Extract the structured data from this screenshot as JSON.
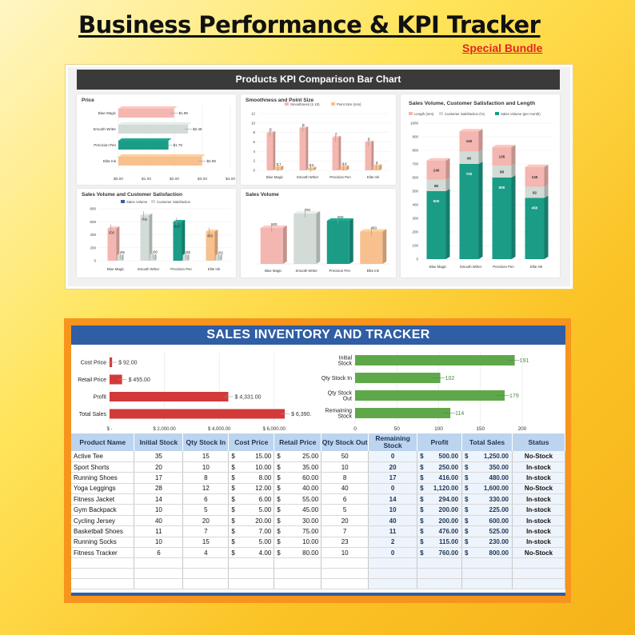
{
  "header": {
    "title": "Business Performance & KPI Tracker",
    "subtitle": "Special Bundle"
  },
  "kpi_panel": {
    "banner": "Products KPI Comparison Bar Chart"
  },
  "colors": {
    "pink": "#f4b6b0",
    "grey": "#d3dbd6",
    "teal": "#1a9c86",
    "orange": "#f8c08e",
    "red_bar": "#d23a3a",
    "green_bar": "#5fa84a",
    "banner_blue": "#2f5ea4",
    "frame_orange": "#f7941d"
  },
  "chart_data": [
    {
      "id": "price",
      "type": "bar",
      "orientation": "horizontal",
      "title": "Price",
      "categories": [
        "Blue Magic",
        "Smooth Writer",
        "Precision Pen",
        "Elite Ink"
      ],
      "values": [
        1.99,
        2.49,
        1.79,
        2.99
      ],
      "value_labels": [
        "$1.99",
        "$2.49",
        "$1.79",
        "$2.99"
      ],
      "bar_colors": [
        "#f4b6b0",
        "#d3dbd6",
        "#1a9c86",
        "#f8c08e"
      ],
      "xlim": [
        0,
        4
      ],
      "xticks": [
        "$0.00",
        "$1.00",
        "$2.00",
        "$3.00",
        "$4.00"
      ]
    },
    {
      "id": "smoothness",
      "type": "bar",
      "title": "Smoothness and Point Size",
      "categories": [
        "Blue Magic",
        "Smooth Writer",
        "Precision Pen",
        "Elite Ink"
      ],
      "series": [
        {
          "name": "Smoothness (1-10)",
          "values": [
            8,
            9,
            7,
            6
          ],
          "color": "#f4b6b0"
        },
        {
          "name": "Point Size (mm)",
          "values": [
            0.7,
            0.5,
            0.8,
            1
          ],
          "color": "#f8c08e"
        }
      ],
      "value_labels": [
        [
          "8",
          "9",
          "7",
          "6"
        ],
        [
          "0.7",
          "0.5",
          "0.8",
          "1"
        ]
      ],
      "ylim": [
        0,
        12
      ],
      "yticks": [
        "0",
        "2",
        "4",
        "6",
        "8",
        "10",
        "12"
      ]
    },
    {
      "id": "stacked",
      "type": "bar",
      "stacked": true,
      "title": "Sales Volume, Customer Satisfaction and Length",
      "categories": [
        "Blue Magic",
        "Smooth Writer",
        "Precision Pen",
        "Elite Ink"
      ],
      "series": [
        {
          "name": "Sales Volume (per month)",
          "values": [
            500,
            700,
            600,
            450
          ],
          "color": "#1a9c86"
        },
        {
          "name": "Customer Satisfaction (%)",
          "values": [
            85,
            90,
            88,
            82
          ],
          "color": "#d3dbd6"
        },
        {
          "name": "Length (mm)",
          "values": [
            140,
            150,
            135,
            145
          ],
          "color": "#f4b6b0"
        }
      ],
      "legend_order": [
        "Length (mm)",
        "Customer Satisfaction (%)",
        "Sales Volume (per month)"
      ],
      "value_labels": [
        [
          "500",
          "700",
          "600",
          "450"
        ],
        [
          "85",
          "90",
          "88",
          "82"
        ],
        [
          "140",
          "150",
          "135",
          "145"
        ]
      ],
      "ylim": [
        0,
        1000
      ],
      "yticks": [
        "0",
        "100",
        "200",
        "300",
        "400",
        "500",
        "600",
        "700",
        "800",
        "900",
        "1000"
      ]
    },
    {
      "id": "sales-satisfaction",
      "type": "bar",
      "title": "Sales Volume and Customer Satisfaction",
      "categories": [
        "Blue Magic",
        "Smooth Writer",
        "Precision Pen",
        "Elite Ink"
      ],
      "series": [
        {
          "name": "Sales Volume",
          "values": [
            500,
            700,
            600,
            450
          ],
          "color": "#3c5ba8"
        },
        {
          "name": "Customer Satisfaction",
          "values": [
            85,
            90,
            88,
            82
          ],
          "color": "#d3dbd6"
        }
      ],
      "bar_colors": [
        "#f4b6b0",
        "#d3dbd6",
        "#1a9c86",
        "#f8c08e"
      ],
      "value_labels": [
        [
          "500",
          "700",
          "600",
          "450"
        ],
        [
          "85",
          "90",
          "88",
          "82"
        ]
      ],
      "ylim": [
        0,
        800
      ],
      "yticks": [
        "0",
        "200",
        "400",
        "600",
        "800"
      ]
    },
    {
      "id": "sales-volume",
      "type": "bar",
      "title": "Sales Volume",
      "categories": [
        "Blue Magic",
        "Smooth Writer",
        "Precision Pen",
        "Elite Ink"
      ],
      "values": [
        500,
        700,
        600,
        450
      ],
      "value_labels": [
        "500",
        "700",
        "600",
        "450"
      ],
      "bar_colors": [
        "#f4b6b0",
        "#d3dbd6",
        "#1a9c86",
        "#f8c08e"
      ],
      "ylim": [
        0,
        800
      ]
    },
    {
      "id": "sales-summary",
      "type": "bar",
      "orientation": "horizontal",
      "categories": [
        "Cost Price",
        "Retail Price",
        "Profit",
        "Total Sales"
      ],
      "values": [
        92,
        455,
        4331,
        6390
      ],
      "value_labels": [
        "$ 92.00",
        "$ 455.00",
        "$ 4,331.00",
        "$ 6,390.00"
      ],
      "xlim": [
        0,
        7000
      ],
      "xticks": [
        "$ -",
        "$ 2,000.00",
        "$ 4,000.00",
        "$ 6,000.00"
      ],
      "color": "#d23a3a"
    },
    {
      "id": "stock-summary",
      "type": "bar",
      "orientation": "horizontal",
      "categories": [
        "Initial Stock",
        "Qty Stock In",
        "Qty Stock Out",
        "Remaining Stock"
      ],
      "values": [
        191,
        102,
        179,
        114
      ],
      "value_labels": [
        "191",
        "102",
        "179",
        "114"
      ],
      "xlim": [
        0,
        200
      ],
      "xticks": [
        "0",
        "50",
        "100",
        "150",
        "200"
      ],
      "color": "#5fa84a"
    }
  ],
  "sales": {
    "banner": "SALES INVENTORY AND TRACKER",
    "columns": [
      "Product Name",
      "Initial Stock",
      "Qty Stock In",
      "Cost Price",
      "Retail Price",
      "Qty Stock Out",
      "Remaining Stock",
      "Profit",
      "Total Sales",
      "Status"
    ],
    "rows": [
      {
        "name": "Active Tee",
        "initial": "35",
        "in": "15",
        "cost": "15.00",
        "retail": "25.00",
        "out": "50",
        "remaining": "0",
        "profit": "500.00",
        "total": "1,250.00",
        "status": "No-Stock"
      },
      {
        "name": "Sport Shorts",
        "initial": "20",
        "in": "10",
        "cost": "10.00",
        "retail": "35.00",
        "out": "10",
        "remaining": "20",
        "profit": "250.00",
        "total": "350.00",
        "status": "In-stock"
      },
      {
        "name": "Running Shoes",
        "initial": "17",
        "in": "8",
        "cost": "8.00",
        "retail": "60.00",
        "out": "8",
        "remaining": "17",
        "profit": "416.00",
        "total": "480.00",
        "status": "In-stock"
      },
      {
        "name": "Yoga Leggings",
        "initial": "28",
        "in": "12",
        "cost": "12.00",
        "retail": "40.00",
        "out": "40",
        "remaining": "0",
        "profit": "1,120.00",
        "total": "1,600.00",
        "status": "No-Stock"
      },
      {
        "name": "Fitness Jacket",
        "initial": "14",
        "in": "6",
        "cost": "6.00",
        "retail": "55.00",
        "out": "6",
        "remaining": "14",
        "profit": "294.00",
        "total": "330.00",
        "status": "In-stock"
      },
      {
        "name": "Gym Backpack",
        "initial": "10",
        "in": "5",
        "cost": "5.00",
        "retail": "45.00",
        "out": "5",
        "remaining": "10",
        "profit": "200.00",
        "total": "225.00",
        "status": "In-stock"
      },
      {
        "name": "Cycling Jersey",
        "initial": "40",
        "in": "20",
        "cost": "20.00",
        "retail": "30.00",
        "out": "20",
        "remaining": "40",
        "profit": "200.00",
        "total": "600.00",
        "status": "In-stock"
      },
      {
        "name": "Basketball Shoes",
        "initial": "11",
        "in": "7",
        "cost": "7.00",
        "retail": "75.00",
        "out": "7",
        "remaining": "11",
        "profit": "476.00",
        "total": "525.00",
        "status": "In-stock"
      },
      {
        "name": "Running Socks",
        "initial": "10",
        "in": "15",
        "cost": "5.00",
        "retail": "10.00",
        "out": "23",
        "remaining": "2",
        "profit": "115.00",
        "total": "230.00",
        "status": "In-stock"
      },
      {
        "name": "Fitness Tracker",
        "initial": "6",
        "in": "4",
        "cost": "4.00",
        "retail": "80.00",
        "out": "10",
        "remaining": "0",
        "profit": "760.00",
        "total": "800.00",
        "status": "No-Stock"
      }
    ]
  }
}
